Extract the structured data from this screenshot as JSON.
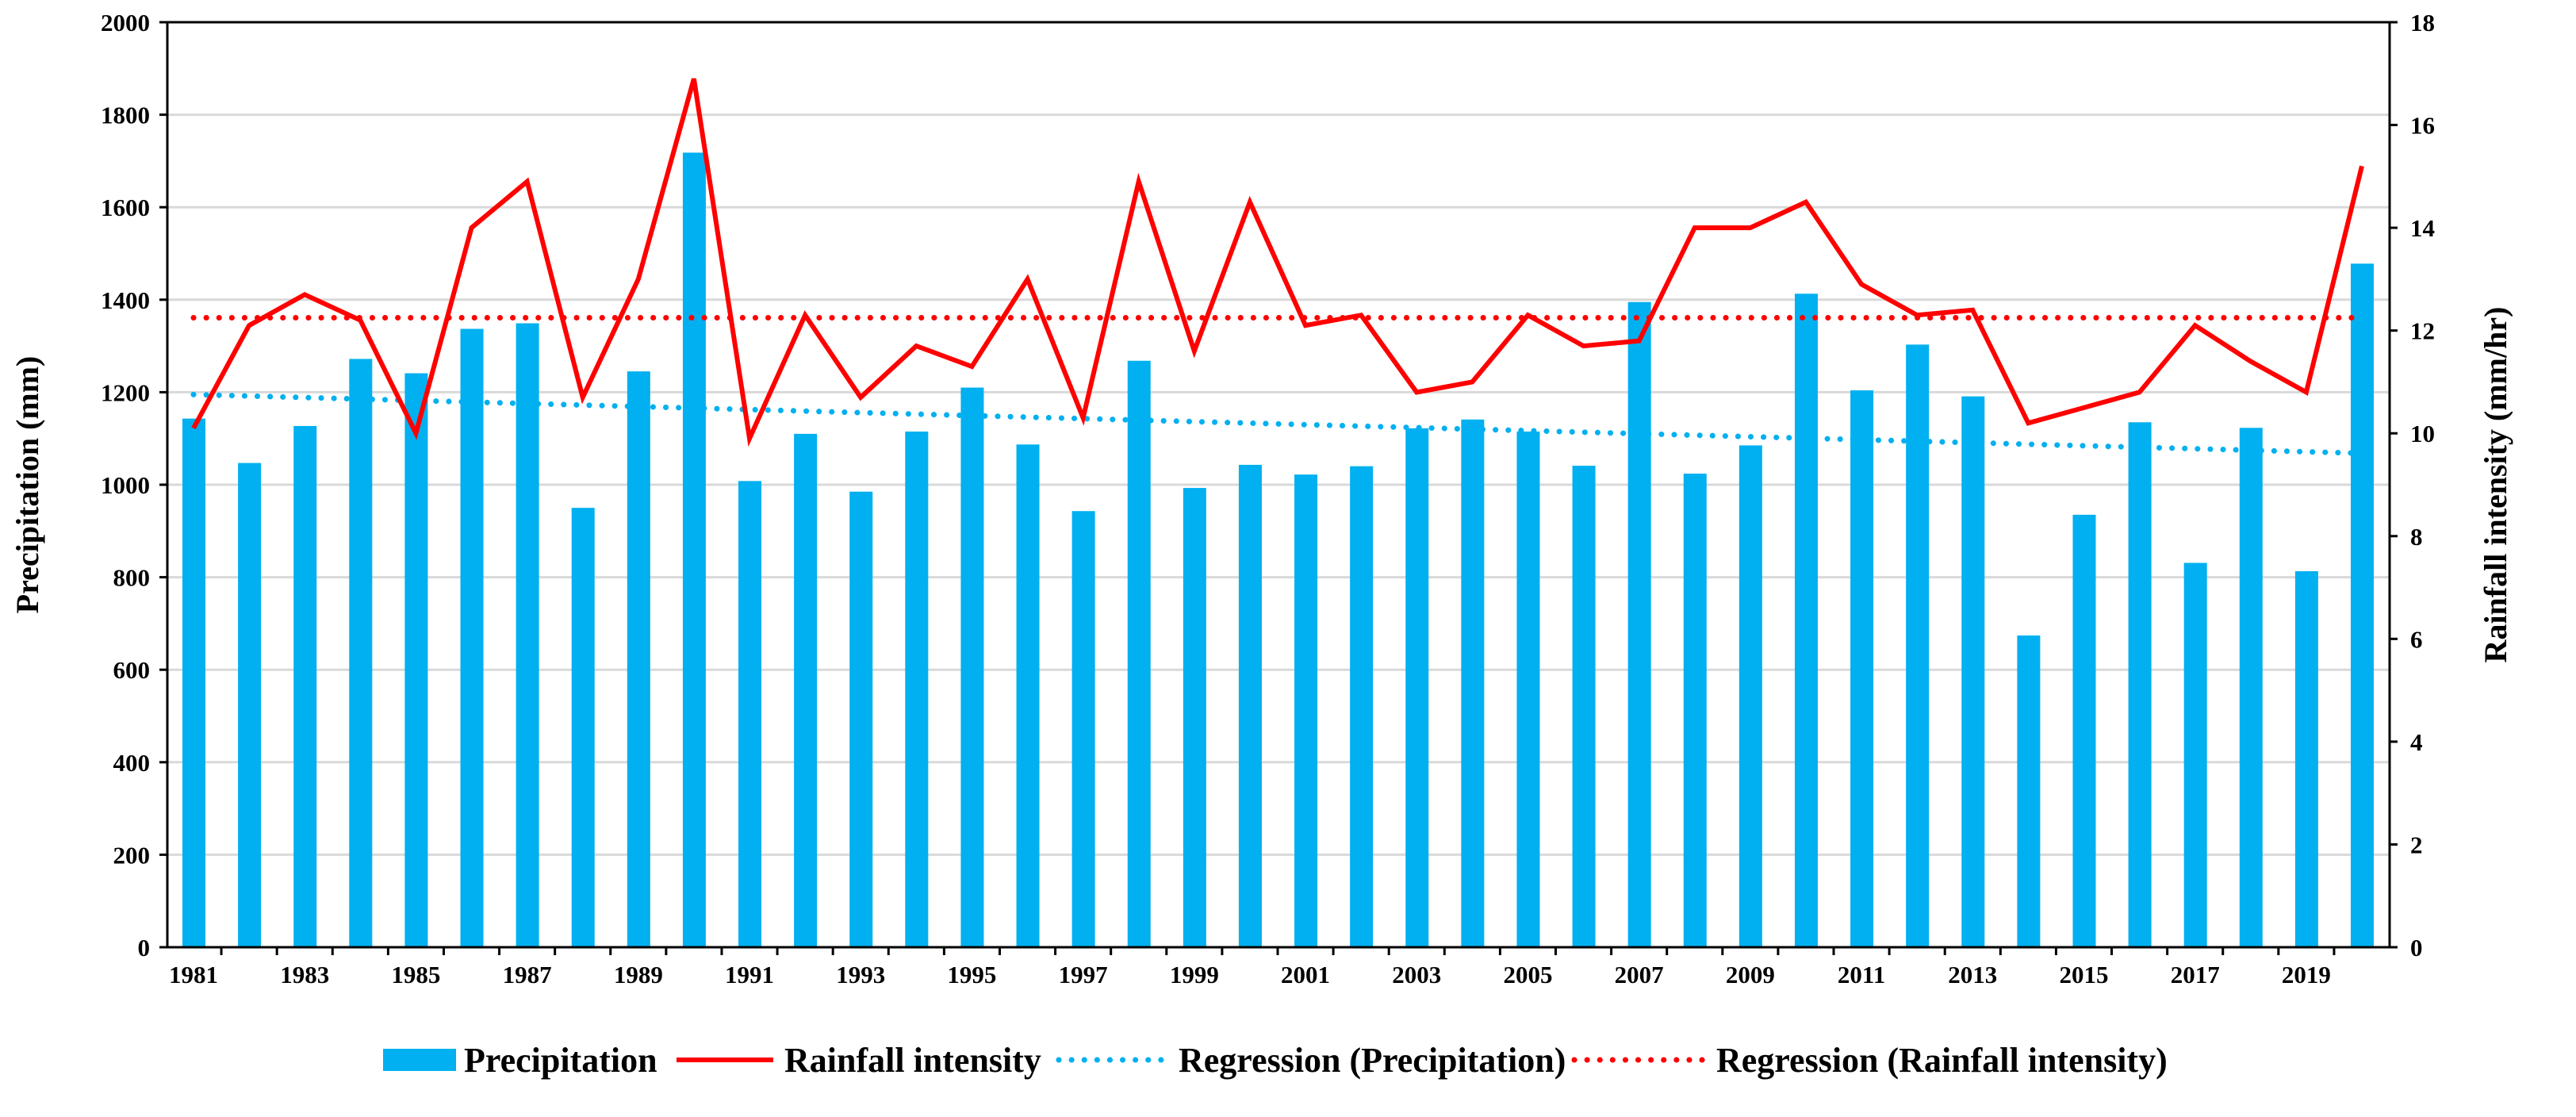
{
  "chart_data": {
    "type": "bar",
    "x": [
      1981,
      1982,
      1983,
      1984,
      1985,
      1986,
      1987,
      1988,
      1989,
      1990,
      1991,
      1992,
      1993,
      1994,
      1995,
      1996,
      1997,
      1998,
      1999,
      2000,
      2001,
      2002,
      2003,
      2004,
      2005,
      2006,
      2007,
      2008,
      2009,
      2010,
      2011,
      2012,
      2013,
      2014,
      2015,
      2016,
      2017,
      2018,
      2019,
      2020
    ],
    "x_tick_labels": [
      "1981",
      "1983",
      "1985",
      "1987",
      "1989",
      "1991",
      "1993",
      "1995",
      "1997",
      "1999",
      "2001",
      "2003",
      "2005",
      "2007",
      "2009",
      "2011",
      "2013",
      "2015",
      "2017",
      "2019"
    ],
    "ylabel": "Precipitation (mm)",
    "ylim": [
      0,
      2000
    ],
    "y_ticks": [
      "0",
      "200",
      "400",
      "600",
      "800",
      "1000",
      "1200",
      "1400",
      "1600",
      "1800",
      "2000"
    ],
    "y2label": "Rainfall intensity (mm/hr)",
    "y2lim": [
      0,
      18
    ],
    "y2_ticks": [
      "0",
      "2",
      "4",
      "6",
      "8",
      "10",
      "12",
      "14",
      "16",
      "18"
    ],
    "grid": true,
    "legend_placement": "bottom",
    "series": [
      {
        "name": "Precipitation",
        "type": "bar",
        "axis": "left",
        "color": "#00B0F0",
        "values": [
          1143,
          1047,
          1127,
          1272,
          1241,
          1337,
          1349,
          950,
          1245,
          1718,
          1008,
          1110,
          985,
          1115,
          1210,
          1087,
          943,
          1268,
          993,
          1043,
          1022,
          1040,
          1122,
          1141,
          1115,
          1041,
          1395,
          1024,
          1085,
          1413,
          1204,
          1303,
          1191,
          674,
          935,
          1135,
          831,
          1123,
          813,
          1478
        ]
      },
      {
        "name": "Rainfall intensity",
        "type": "line",
        "axis": "right",
        "color": "#FF0000",
        "values": [
          10.1,
          12.1,
          12.7,
          12.2,
          10.0,
          14.0,
          14.9,
          10.7,
          13.0,
          16.9,
          9.9,
          12.3,
          10.7,
          11.7,
          11.3,
          13.0,
          10.3,
          14.9,
          11.6,
          14.5,
          12.1,
          12.3,
          10.8,
          11.0,
          12.3,
          11.7,
          11.8,
          14.0,
          14.0,
          14.5,
          12.9,
          12.3,
          12.4,
          10.2,
          10.5,
          10.8,
          12.1,
          11.4,
          10.8,
          15.2
        ]
      },
      {
        "name": "Regression (Precipitation)",
        "type": "line-dotted",
        "axis": "left",
        "color": "#00B0F0",
        "start": [
          1981,
          1195
        ],
        "end": [
          2020,
          1068
        ]
      },
      {
        "name": "Regression (Rainfall intensity)",
        "type": "line-dotted",
        "axis": "right",
        "color": "#FF0000",
        "start": [
          1981,
          12.25
        ],
        "end": [
          2020,
          12.25
        ]
      }
    ]
  }
}
